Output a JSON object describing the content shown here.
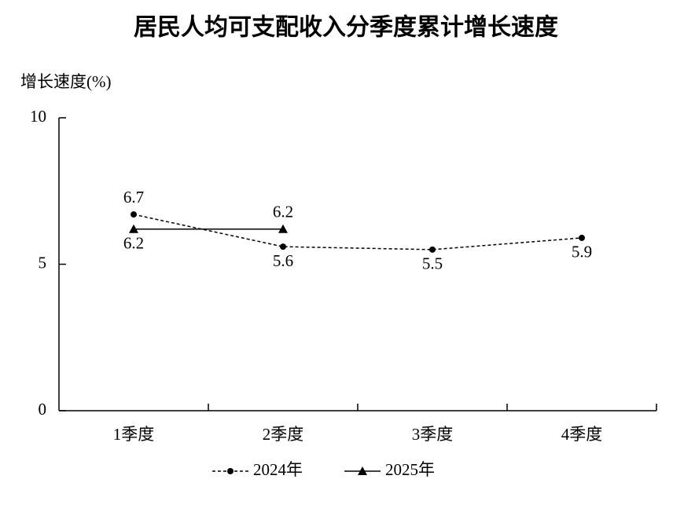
{
  "chart_data": {
    "type": "line",
    "title": "居民人均可支配收入分季度累计增长速度",
    "y_label": "增长速度(%)",
    "categories": [
      "1季度",
      "2季度",
      "3季度",
      "4季度"
    ],
    "series": [
      {
        "name": "2024年",
        "color": "#000000",
        "dash": true,
        "marker": "circle",
        "values": [
          6.7,
          5.6,
          5.5,
          5.9
        ]
      },
      {
        "name": "2025年",
        "color": "#000000",
        "dash": false,
        "marker": "triangle",
        "values": [
          6.2,
          6.2,
          null,
          null
        ]
      }
    ],
    "ylim": [
      0,
      10
    ],
    "yticks": [
      0,
      5,
      10
    ],
    "grid": false
  }
}
